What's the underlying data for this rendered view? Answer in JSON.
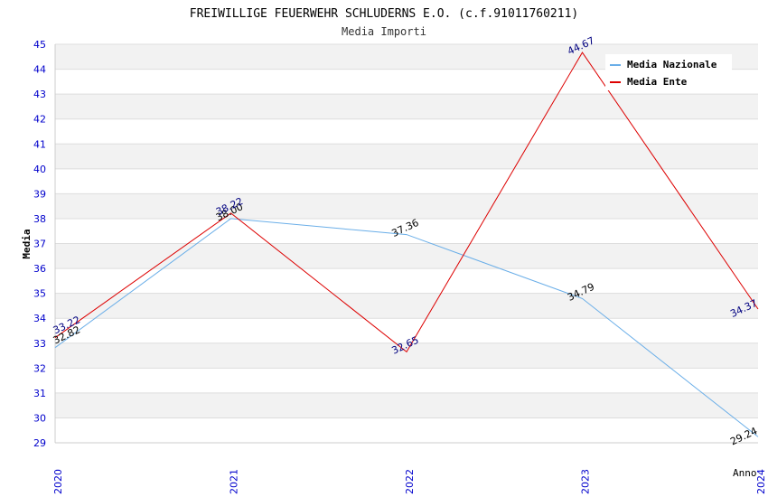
{
  "chart_data": {
    "type": "line",
    "title": "FREIWILLIGE FEUERWEHR SCHLUDERNS E.O. (c.f.91011760211)",
    "subtitle": "Media Importi",
    "xlabel": "Anno",
    "ylabel": "Media",
    "categories": [
      "2020",
      "2021",
      "2022",
      "2023",
      "2024"
    ],
    "ylim": [
      29,
      45
    ],
    "yticks": [
      "29",
      "30",
      "31",
      "32",
      "33",
      "34",
      "35",
      "36",
      "37",
      "38",
      "39",
      "40",
      "41",
      "42",
      "43",
      "44",
      "45"
    ],
    "grid": true,
    "legend_position": "top-right",
    "series": [
      {
        "name": "Media Nazionale",
        "color": "#6aaee8",
        "label_color": "#000000",
        "values": [
          32.82,
          38.0,
          37.36,
          34.79,
          29.24
        ],
        "labels": [
          "32.82",
          "38.00",
          "37.36",
          "34.79",
          "29.24"
        ]
      },
      {
        "name": "Media Ente",
        "color": "#dd0000",
        "label_color": "#000080",
        "values": [
          33.22,
          38.22,
          32.65,
          44.67,
          34.37
        ],
        "labels": [
          "33.22",
          "38.22",
          "32.65",
          "44.67",
          "34.37"
        ]
      }
    ],
    "colors": {
      "band": "#f2f2f2",
      "gridline": "#dddddd",
      "tick_text": "#0000cc",
      "axis_text": "#000000"
    }
  }
}
